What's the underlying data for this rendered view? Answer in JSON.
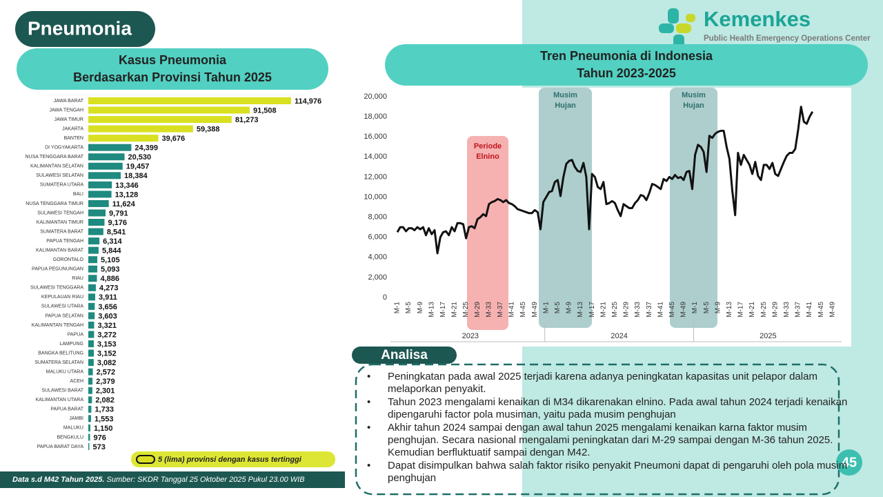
{
  "header": {
    "title": "Pneumonia"
  },
  "logo": {
    "name": "Kemenkes",
    "tagline": "Public Health Emergency Operations Center"
  },
  "chart_data": [
    {
      "type": "bar",
      "orientation": "horizontal",
      "title": [
        "Kasus Pneumonia",
        "Berdasarkan Provinsi Tahun 2025"
      ],
      "categories": [
        "JAWA BARAT",
        "JAWA TENGAH",
        "JAWA TIMUR",
        "JAKARTA",
        "BANTEN",
        "DI YOGYAKARTA",
        "NUSA TENGGARA BARAT",
        "KALIMANTAN SELATAN",
        "SULAWESI SELATAN",
        "SUMATERA UTARA",
        "BALI",
        "NUSA TENGGARA TIMUR",
        "SULAWESI TENGAH",
        "KALIMANTAN TIMUR",
        "SUMATERA BARAT",
        "PAPUA TENGAH",
        "KALIMANTAN BARAT",
        "GORONTALO",
        "PAPUA PEGUNUNGAN",
        "RIAU",
        "SULAWESI TENGGARA",
        "KEPULAUAN RIAU",
        "SULAWESI UTARA",
        "PAPUA SELATAN",
        "KALIMANTAN TENGAH",
        "PAPUA",
        "LAMPUNG",
        "BANGKA BELITUNG",
        "SUMATERA SELATAN",
        "MALUKU UTARA",
        "ACEH",
        "SULAWESI BARAT",
        "KALIMANTAN UTARA",
        "PAPUA BARAT",
        "JAMBI",
        "MALUKU",
        "BENGKULU",
        "PAPUA BARAT DAYA"
      ],
      "values": [
        114976,
        91508,
        81273,
        59388,
        39676,
        24399,
        20530,
        19457,
        18384,
        13346,
        13128,
        11624,
        9791,
        9176,
        8541,
        6314,
        5844,
        5105,
        5093,
        4886,
        4273,
        3911,
        3656,
        3603,
        3321,
        3272,
        3153,
        3152,
        3082,
        2572,
        2379,
        2301,
        2082,
        1733,
        1553,
        1150,
        976,
        573
      ],
      "value_labels": [
        "114,976",
        "91,508",
        "81,273",
        "59,388",
        "39,676",
        "24,399",
        "20,530",
        "19,457",
        "18,384",
        "13,346",
        "13,128",
        "11,624",
        "9,791",
        "9,176",
        "8,541",
        "6,314",
        "5,844",
        "5,105",
        "5,093",
        "4,886",
        "4,273",
        "3,911",
        "3,656",
        "3,603",
        "3,321",
        "3,272",
        "3,153",
        "3,152",
        "3,082",
        "2,572",
        "2,379",
        "2,301",
        "2,082",
        "1,733",
        "1,553",
        "1,150",
        "976",
        "573"
      ],
      "colors": [
        "#d9e021",
        "#d9e021",
        "#d9e021",
        "#d9e021",
        "#d9e021",
        "#1f8a7f",
        "#1f8a7f",
        "#1f8a7f",
        "#1f8a7f",
        "#1f8a7f",
        "#1f8a7f",
        "#1f8a7f",
        "#1f8a7f",
        "#1f8a7f",
        "#1f8a7f",
        "#1f8a7f",
        "#1f8a7f",
        "#1f8a7f",
        "#1f8a7f",
        "#1f8a7f",
        "#1f8a7f",
        "#1f8a7f",
        "#1f8a7f",
        "#1f8a7f",
        "#1f8a7f",
        "#1f8a7f",
        "#1f8a7f",
        "#1f8a7f",
        "#1f8a7f",
        "#1f8a7f",
        "#1f8a7f",
        "#1f8a7f",
        "#1f8a7f",
        "#1f8a7f",
        "#1f8a7f",
        "#1f8a7f",
        "#1f8a7f",
        "#1f8a7f"
      ],
      "legend": {
        "label": "5 (lima) provinsi dengan kasus tertinggi",
        "color": "#d9e021"
      }
    },
    {
      "type": "line",
      "title": [
        "Tren Pneumonia di Indonesia",
        "Tahun 2023-2025"
      ],
      "categories": [
        "M-1",
        null,
        null,
        null,
        "M-5",
        null,
        null,
        null,
        "M-9",
        null,
        null,
        null,
        "M-13",
        null,
        null,
        null,
        "M-17",
        null,
        null,
        null,
        "M-21",
        null,
        null,
        null,
        "M-25",
        null,
        null,
        null,
        "M-29",
        null,
        null,
        null,
        "M-33",
        null,
        null,
        null,
        "M-37",
        null,
        null,
        null,
        "M-41",
        null,
        null,
        null,
        "M-45",
        null,
        null,
        null,
        "M-49",
        null,
        null,
        null,
        "M-1",
        null,
        null,
        null,
        "M-5",
        null,
        null,
        null,
        "M-9",
        null,
        null,
        null,
        "M-13",
        null,
        null,
        null,
        "M-17",
        null,
        null,
        null,
        "M-21",
        null,
        null,
        null,
        "M-25",
        null,
        null,
        null,
        "M-29",
        null,
        null,
        null,
        "M-33",
        null,
        null,
        null,
        "M-37",
        null,
        null,
        null,
        "M-41",
        null,
        null,
        null,
        "M-45",
        null,
        null,
        null,
        "M-49",
        null,
        null,
        null,
        "M-1",
        null,
        null,
        null,
        "M-5",
        null,
        null,
        null,
        "M-9",
        null,
        null,
        null,
        "M-13",
        null,
        null,
        null,
        "M-17",
        null,
        null,
        null,
        "M-21",
        null,
        null,
        null,
        "M-25",
        null,
        null,
        null,
        "M-29",
        null,
        null,
        null,
        "M-33",
        null,
        null,
        null,
        "M-37",
        null,
        null,
        null,
        "M-41",
        null,
        null,
        null,
        "M-45",
        null,
        null,
        null,
        "M-49",
        null,
        null,
        null
      ],
      "x_groups": [
        "2023",
        "2024",
        "2025"
      ],
      "values": [
        6500,
        7000,
        7000,
        6600,
        6900,
        6900,
        6700,
        7000,
        6800,
        7000,
        6200,
        6900,
        6300,
        6700,
        4400,
        6000,
        6500,
        6600,
        6200,
        7000,
        6600,
        7400,
        7400,
        7300,
        5900,
        7000,
        7100,
        6900,
        7800,
        8000,
        8300,
        8100,
        9300,
        9500,
        9600,
        9800,
        9700,
        9500,
        9700,
        9400,
        9300,
        9100,
        8800,
        8700,
        8600,
        8500,
        8400,
        8400,
        8700,
        8500,
        6800,
        9500,
        10000,
        10500,
        10600,
        11500,
        11700,
        10100,
        12000,
        13300,
        13600,
        13700,
        13000,
        12600,
        12500,
        13400,
        12000,
        6800,
        12300,
        12000,
        11000,
        10800,
        11500,
        9300,
        9400,
        9600,
        9400,
        8700,
        8100,
        9300,
        9100,
        8900,
        8900,
        9400,
        9700,
        10200,
        10100,
        9700,
        10400,
        11300,
        11200,
        11000,
        10800,
        11800,
        11600,
        12000,
        11800,
        12200,
        11900,
        12000,
        11700,
        12500,
        12600,
        10800,
        14200,
        15200,
        15000,
        14500,
        12500,
        16100,
        15900,
        16300,
        16500,
        16600,
        16600,
        15000,
        13800,
        10600,
        8200,
        14400,
        13200,
        14200,
        13700,
        13200,
        12300,
        13500,
        12100,
        11700,
        13200,
        13200,
        12800,
        13400,
        12300,
        12100,
        12800,
        13500,
        14100,
        14400,
        14400,
        14800,
        16700,
        19000,
        17500,
        17300,
        18000,
        18500,
        null,
        null,
        null,
        null,
        null,
        null,
        null,
        null,
        null,
        null
      ],
      "color": "#111111",
      "ylim": [
        0,
        20000
      ],
      "yticks": [
        0,
        {
          "value": 2000,
          "label": "2,000"
        },
        {
          "value": 4000,
          "label": "4,000"
        },
        {
          "value": 6000,
          "label": "6,000"
        },
        {
          "value": 8000,
          "label": "8,000"
        },
        {
          "value": 10000,
          "label": "10,000"
        },
        {
          "value": 12000,
          "label": "12,000"
        },
        {
          "value": 14000,
          "label": "14,000"
        },
        {
          "value": 16000,
          "label": "16,000"
        },
        {
          "value": 18000,
          "label": "18,000"
        },
        {
          "value": 20000,
          "label": "20,000"
        }
      ],
      "grid": false,
      "annotations": [
        {
          "text": [
            "Periode",
            "Elnino"
          ],
          "color": "#f4a3a3",
          "text_color": "#c0161d"
        },
        {
          "text": [
            "Musim",
            "Hujan"
          ],
          "color": "#9fc6c4",
          "text_color": "#2f6f6e"
        },
        {
          "text": [
            "Musim",
            "Hujan"
          ],
          "color": "#9fc6c4",
          "text_color": "#2f6f6e"
        }
      ]
    }
  ],
  "analysis": {
    "title": "Analisa",
    "items": [
      "Peningkatan pada awal 2025 terjadi karena adanya peningkatan kapasitas unit pelapor dalam melaporkan penyakit.",
      "Tahun 2023 mengalami kenaikan di M34 dikarenakan elnino. Pada awal tahun 2024 terjadi kenaikan dipengaruhi factor pola musiman, yaitu pada musim penghujan",
      "Akhir tahun 2024 sampai dengan awal tahun 2025 mengalami kenaikan karna faktor musim penghujan. Secara nasional mengalami peningkatan dari M-29 sampai dengan M-36 tahun 2025. Kemudian berfluktuatif sampai dengan M42.",
      "Dapat disimpulkan bahwa salah faktor risiko penyakit Pneumoni dapat di pengaruhi oleh pola musim penghujan"
    ]
  },
  "footer": {
    "note": "Data s.d M42 Tahun 2025.",
    "source": "Sumber: SKDR Tanggal 25 Oktober 2025 Pukul 23.00 WIB"
  },
  "page_number": 45
}
